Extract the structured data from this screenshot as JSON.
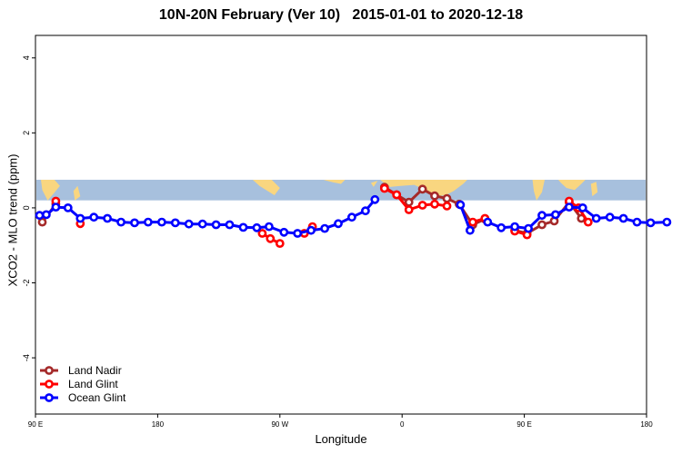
{
  "chart_data": {
    "type": "line",
    "title": "10N-20N February (Ver 10)   2015-01-01 to 2020-12-18",
    "xlabel": "Longitude",
    "ylabel": "XCO2 - MLO trend (ppm)",
    "x_ticks": [
      {
        "value": 90,
        "label": "90 E"
      },
      {
        "value": 180,
        "label": "180"
      },
      {
        "value": 270,
        "label": "90 W"
      },
      {
        "value": 360,
        "label": "0"
      },
      {
        "value": 450,
        "label": "90 E"
      },
      {
        "value": 540,
        "label": "180"
      }
    ],
    "y_ticks": [
      -4,
      -2,
      0,
      2,
      4
    ],
    "xlim": [
      90,
      540
    ],
    "ylim": [
      -5.5,
      4.6
    ],
    "map_band": {
      "y_range": [
        0.2,
        0.75
      ],
      "ocean_color": "#a7c0dd",
      "land_color": "#f9d680"
    },
    "legend": {
      "position": "bottom-left"
    },
    "series": [
      {
        "name": "Land Nadir",
        "color": "#a52a2a",
        "points": [
          [
            95,
            -0.38
          ],
          [
            105,
            0.1
          ],
          [
            347,
            0.55
          ],
          [
            356,
            0.35
          ],
          [
            365,
            0.15
          ],
          [
            375,
            0.5
          ],
          [
            384,
            0.32
          ],
          [
            393,
            0.25
          ],
          [
            402,
            0.1
          ],
          [
            412,
            -0.45
          ],
          [
            421,
            -0.3
          ],
          [
            443,
            -0.6
          ],
          [
            452,
            -0.68
          ],
          [
            463,
            -0.45
          ],
          [
            472,
            -0.35
          ],
          [
            483,
            0.15
          ],
          [
            492,
            -0.28
          ]
        ]
      },
      {
        "name": "Land Glint",
        "color": "#ff0000",
        "points": [
          [
            105,
            0.18
          ],
          [
            123,
            -0.42
          ],
          [
            257,
            -0.68
          ],
          [
            263,
            -0.82
          ],
          [
            270,
            -0.95
          ],
          [
            288,
            -0.68
          ],
          [
            294,
            -0.5
          ],
          [
            347,
            0.52
          ],
          [
            356,
            0.35
          ],
          [
            365,
            -0.05
          ],
          [
            375,
            0.07
          ],
          [
            384,
            0.1
          ],
          [
            393,
            0.05
          ],
          [
            412,
            -0.38
          ],
          [
            421,
            -0.28
          ],
          [
            443,
            -0.62
          ],
          [
            452,
            -0.72
          ],
          [
            483,
            0.18
          ],
          [
            490,
            0
          ],
          [
            497,
            -0.38
          ]
        ]
      },
      {
        "name": "Ocean Glint",
        "color": "#0000ff",
        "points": [
          [
            93,
            -0.2
          ],
          [
            98,
            -0.18
          ],
          [
            105,
            0.02
          ],
          [
            114,
            0
          ],
          [
            123,
            -0.28
          ],
          [
            133,
            -0.25
          ],
          [
            143,
            -0.28
          ],
          [
            153,
            -0.38
          ],
          [
            163,
            -0.4
          ],
          [
            173,
            -0.38
          ],
          [
            183,
            -0.38
          ],
          [
            193,
            -0.4
          ],
          [
            203,
            -0.43
          ],
          [
            213,
            -0.43
          ],
          [
            223,
            -0.45
          ],
          [
            233,
            -0.45
          ],
          [
            243,
            -0.52
          ],
          [
            253,
            -0.53
          ],
          [
            262,
            -0.5
          ],
          [
            273,
            -0.65
          ],
          [
            283,
            -0.68
          ],
          [
            293,
            -0.6
          ],
          [
            303,
            -0.55
          ],
          [
            313,
            -0.42
          ],
          [
            323,
            -0.25
          ],
          [
            333,
            -0.08
          ],
          [
            340,
            0.22
          ],
          [
            403,
            0.08
          ],
          [
            410,
            -0.6
          ],
          [
            423,
            -0.38
          ],
          [
            433,
            -0.53
          ],
          [
            443,
            -0.5
          ],
          [
            453,
            -0.55
          ],
          [
            463,
            -0.2
          ],
          [
            473,
            -0.18
          ],
          [
            483,
            0.02
          ],
          [
            493,
            0
          ],
          [
            503,
            -0.28
          ],
          [
            513,
            -0.25
          ],
          [
            523,
            -0.28
          ],
          [
            533,
            -0.38
          ],
          [
            543,
            -0.4
          ],
          [
            555,
            -0.38
          ]
        ]
      }
    ]
  }
}
